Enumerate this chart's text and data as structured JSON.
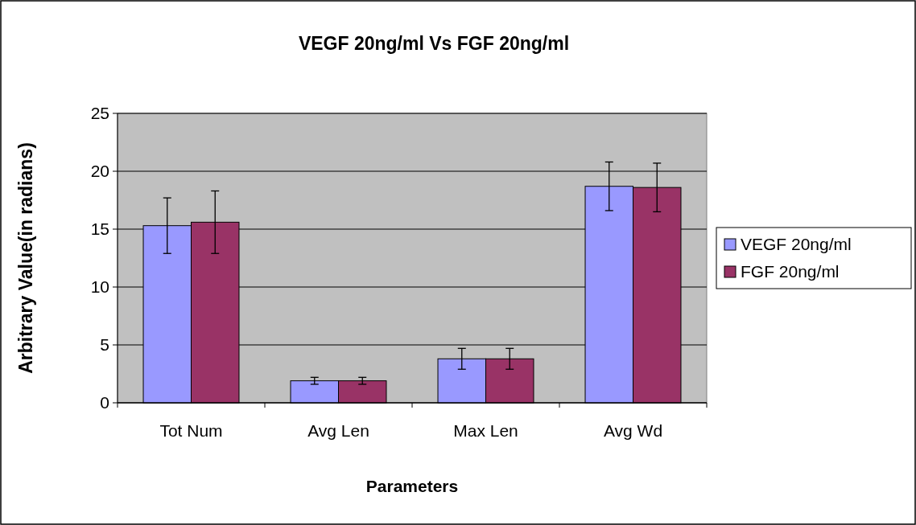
{
  "chart_data": {
    "type": "bar",
    "title": "VEGF 20ng/ml Vs FGF 20ng/ml",
    "xlabel": "Parameters",
    "ylabel": "Arbitrary Value(in radians)",
    "categories": [
      "Tot Num",
      "Avg Len",
      "Max Len",
      "Avg Wd"
    ],
    "series": [
      {
        "name": "VEGF 20ng/ml",
        "color": "#9999ff",
        "values": [
          15.3,
          1.9,
          3.8,
          18.7
        ],
        "errors": [
          2.4,
          0.3,
          0.9,
          2.1
        ]
      },
      {
        "name": "FGF 20ng/ml",
        "color": "#993366",
        "values": [
          15.6,
          1.9,
          3.8,
          18.6
        ],
        "errors": [
          2.7,
          0.3,
          0.9,
          2.1
        ]
      }
    ],
    "ylim": [
      0,
      25
    ],
    "yticks": [
      0,
      5,
      10,
      15,
      20,
      25
    ],
    "grid": "y",
    "legend": "right"
  }
}
